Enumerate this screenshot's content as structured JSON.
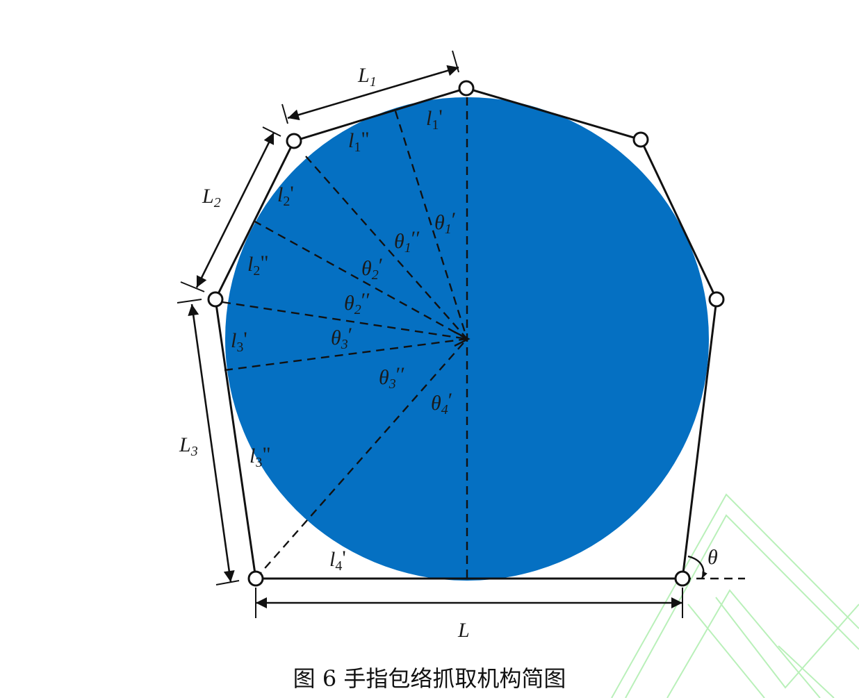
{
  "caption": "图 6 手指包络抓取机构简图",
  "colors": {
    "object_fill": "#0570c2",
    "lines": "#111111",
    "watermark": "#b9f0b9"
  },
  "labels": {
    "L1": {
      "main": "L",
      "sub": "1"
    },
    "L2": {
      "main": "L",
      "sub": "2"
    },
    "L3": {
      "main": "L",
      "sub": "3"
    },
    "L": {
      "main": "L"
    },
    "theta": {
      "main": "θ"
    },
    "l1p": {
      "main": "l",
      "sub": "1",
      "mark": "'"
    },
    "l1pp": {
      "main": "l",
      "sub": "1",
      "mark": "\""
    },
    "l2p": {
      "main": "l",
      "sub": "2",
      "mark": "'"
    },
    "l2pp": {
      "main": "l",
      "sub": "2",
      "mark": "\""
    },
    "l3p": {
      "main": "l",
      "sub": "3",
      "mark": "'"
    },
    "l3pp": {
      "main": "l",
      "sub": "3",
      "mark": "\""
    },
    "l4p": {
      "main": "l",
      "sub": "4",
      "mark": "'"
    },
    "t1p": {
      "main": "θ",
      "sub": "1",
      "mark": "′"
    },
    "t1pp": {
      "main": "θ",
      "sub": "1",
      "mark": "′′"
    },
    "t2p": {
      "main": "θ",
      "sub": "2",
      "mark": "′"
    },
    "t2pp": {
      "main": "θ",
      "sub": "2",
      "mark": "′′"
    },
    "t3p": {
      "main": "θ",
      "sub": "3",
      "mark": "′"
    },
    "t3pp": {
      "main": "θ",
      "sub": "3",
      "mark": "′′"
    },
    "t4p": {
      "main": "θ",
      "sub": "4",
      "mark": "′"
    }
  }
}
